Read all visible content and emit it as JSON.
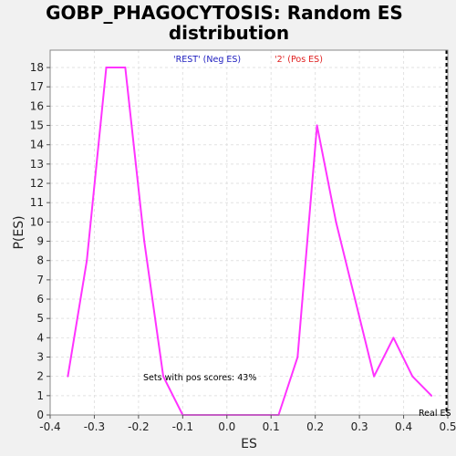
{
  "chart_data": {
    "type": "line",
    "title_line1": "GOBP_PHAGOCYTOSIS: Random ES",
    "title_line2": "distribution",
    "xlabel": "ES",
    "ylabel": "P(ES)",
    "xlim": [
      -0.4,
      0.5
    ],
    "ylim": [
      0,
      18.9
    ],
    "x_ticks": [
      -0.4,
      -0.3,
      -0.2,
      -0.1,
      0.0,
      0.1,
      0.2,
      0.3,
      0.4,
      0.5
    ],
    "x_tick_labels": [
      "-0.4",
      "-0.3",
      "-0.2",
      "-0.1",
      "0.0",
      "0.1",
      "0.2",
      "0.3",
      "0.4",
      "0.5"
    ],
    "y_ticks": [
      0,
      1,
      2,
      3,
      4,
      5,
      6,
      7,
      8,
      9,
      10,
      11,
      12,
      13,
      14,
      15,
      16,
      17,
      18
    ],
    "grid": true,
    "legend": [
      {
        "label": "'REST' (Neg ES)",
        "color": "#2020c0"
      },
      {
        "label": "'2' (Pos ES)",
        "color": "#e02020"
      }
    ],
    "series": [
      {
        "color": "#ff33ff",
        "x": [
          -0.36,
          -0.317,
          -0.273,
          -0.23,
          -0.187,
          -0.144,
          -0.1,
          0.117,
          0.16,
          0.204,
          0.247,
          0.29,
          0.333,
          0.377,
          0.42,
          0.463
        ],
        "y": [
          2,
          8,
          18,
          18,
          9,
          2,
          0,
          0,
          3,
          15,
          10,
          6,
          2,
          4,
          2,
          1
        ]
      }
    ],
    "real_es": 0.497,
    "real_es_label": "Real ES",
    "annotation": "Sets with pos scores: 43%"
  }
}
